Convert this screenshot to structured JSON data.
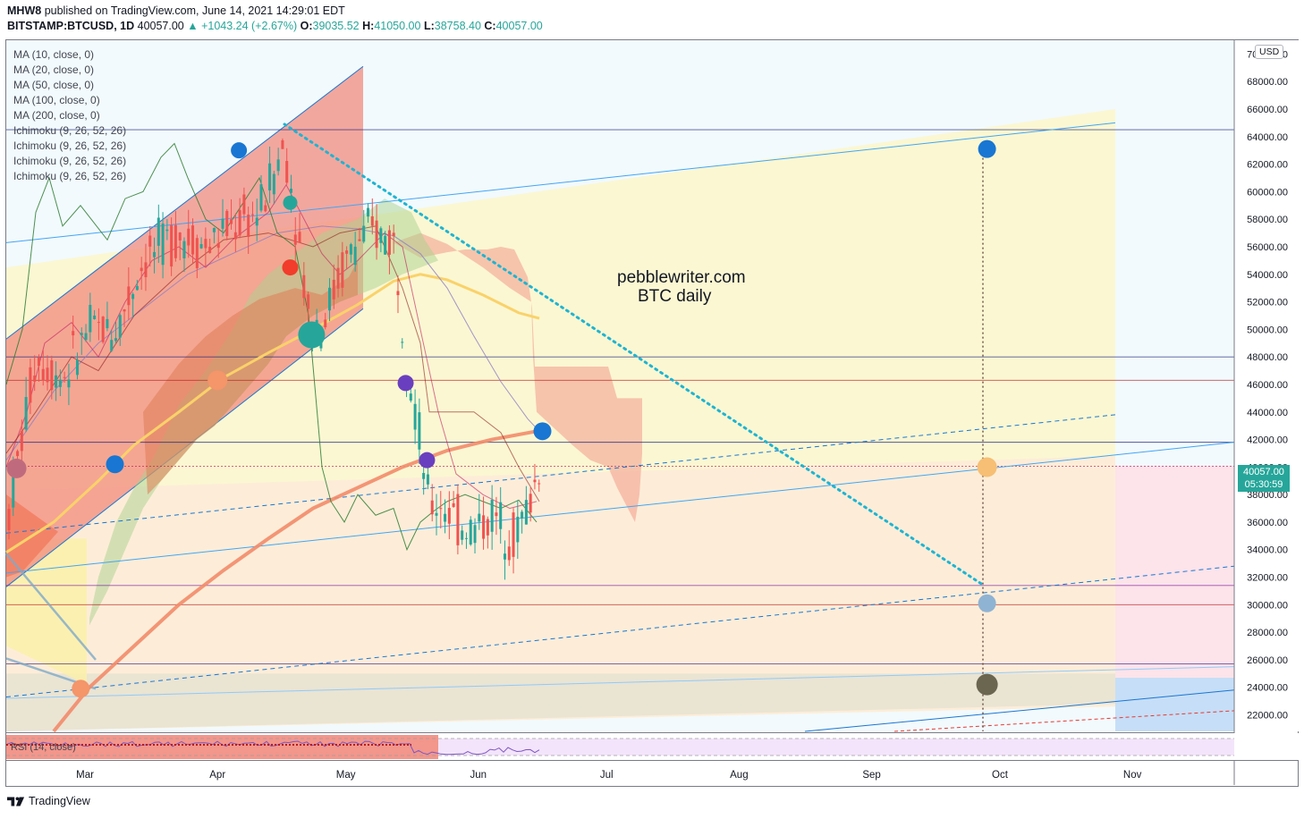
{
  "header": {
    "author": "MHW8",
    "published_text": "published on TradingView.com, June 14, 2021 14:29:01 EDT",
    "symbol": "BITSTAMP:BTCUSD, 1D",
    "last_price": "40057.00",
    "change": "▲ +1043.24 (+2.67%)",
    "open_label": "O:",
    "open": "39035.52",
    "high_label": "H:",
    "high": "41050.00",
    "low_label": "L:",
    "low": "38758.40",
    "close_label": "C:",
    "close": "40057.00"
  },
  "legend": [
    "MA (10, close, 0)",
    "MA (20, close, 0)",
    "MA (50, close, 0)",
    "MA (100, close, 0)",
    "MA (200, close, 0)",
    "Ichimoku (9, 26, 52, 26)",
    "Ichimoku (9, 26, 52, 26)",
    "Ichimoku (9, 26, 52, 26)",
    "Ichimoku (9, 26, 52, 26)"
  ],
  "watermark": {
    "line1": "pebblewriter.com",
    "line2": "BTC daily"
  },
  "currency_badge": "USD",
  "price_tag": {
    "price": "40057.00",
    "countdown": "05:30:59"
  },
  "rsi_label": "RSI (14, close)",
  "footer": {
    "brand": "TradingView"
  },
  "colors": {
    "up": "#26a69a",
    "down": "#ef5350",
    "blue_dot": "#1976d2",
    "cloud_red": "#f4a191",
    "cloud_yellow": "#fbf7d2",
    "horizontal_blue": "#1a237e"
  },
  "chart_data": {
    "type": "candlestick",
    "xaxis_ticks": [
      "Mar",
      "Apr",
      "May",
      "Jun",
      "Jul",
      "Aug",
      "Sep",
      "Oct",
      "Nov"
    ],
    "yaxis_ticks": [
      22000,
      24000,
      26000,
      28000,
      30000,
      32000,
      34000,
      36000,
      38000,
      40000,
      42000,
      44000,
      46000,
      48000,
      50000,
      52000,
      54000,
      56000,
      58000,
      60000,
      62000,
      64000,
      66000,
      68000,
      70000
    ],
    "ylim": [
      20800,
      71000
    ],
    "horizontal_levels": [
      64500,
      48000,
      46300,
      41800,
      40057,
      31400,
      30000,
      25700
    ],
    "annotation_dots": [
      {
        "date": "Apr 6",
        "price": 63000,
        "color": "#1976d2"
      },
      {
        "date": "Mar 8",
        "price": 40200,
        "color": "#1976d2"
      },
      {
        "date": "Feb 13",
        "price": 39900,
        "color": "#c06b7d"
      },
      {
        "date": "Apr 1",
        "price": 46300,
        "color": "#f4956a"
      },
      {
        "date": "Apr 18",
        "price": 59200,
        "color": "#26a69a"
      },
      {
        "date": "Apr 18",
        "price": 54500,
        "color": "#f23c2c"
      },
      {
        "date": "Apr 23",
        "price": 49600,
        "color": "#26a69a"
      },
      {
        "date": "May 15",
        "price": 46100,
        "color": "#6a3fbf"
      },
      {
        "date": "May 20",
        "price": 40500,
        "color": "#6a3fbf"
      },
      {
        "date": "Jun 16",
        "price": 42600,
        "color": "#1976d2"
      },
      {
        "date": "Feb 28",
        "price": 23900,
        "color": "#f4956a"
      },
      {
        "date": "Sep 28",
        "price": 63100,
        "color": "#1976d2"
      },
      {
        "date": "Sep 28",
        "price": 39990,
        "color": "#f6bf75"
      },
      {
        "date": "Sep 28",
        "price": 30100,
        "color": "#8fb3d3"
      },
      {
        "date": "Sep 28",
        "price": 24200,
        "color": "#6b6650"
      }
    ]
  }
}
